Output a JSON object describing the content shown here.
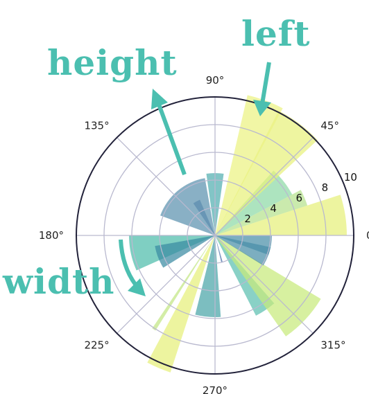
{
  "chart_data": {
    "type": "polar-bar",
    "theta_unit": "degrees",
    "rlim": [
      0,
      10
    ],
    "r_ticks": [
      2,
      4,
      6,
      8,
      10
    ],
    "r_tick_labels": [
      "2",
      "4",
      "6",
      "8",
      "10"
    ],
    "r_label_angle": 22,
    "theta_ticks": [
      0,
      45,
      90,
      135,
      180,
      225,
      270,
      315
    ],
    "theta_tick_labels": [
      "0°",
      "45°",
      "90°",
      "135°",
      "180°",
      "225°",
      "270°",
      "315°"
    ],
    "grid": true,
    "colormap": "viridis",
    "bars": [
      {
        "left": 0,
        "width": 18,
        "height": 9.5,
        "color": "#e6f07a"
      },
      {
        "left": 18,
        "width": 10,
        "height": 7.0,
        "color": "#b6e28e"
      },
      {
        "left": 28,
        "width": 20,
        "height": 6.3,
        "color": "#8ed9a6"
      },
      {
        "left": 43,
        "width": 20,
        "height": 10.1,
        "color": "#e7f17c"
      },
      {
        "left": 62,
        "width": 15,
        "height": 10.4,
        "color": "#ecf382"
      },
      {
        "left": 82,
        "width": 16,
        "height": 4.5,
        "color": "#52aeb0"
      },
      {
        "left": 113,
        "width": 11,
        "height": 2.8,
        "color": "#5b7bae"
      },
      {
        "left": 100,
        "width": 60,
        "height": 4.2,
        "color": "#5c91ae"
      },
      {
        "left": 180,
        "width": 24,
        "height": 6.2,
        "color": "#4dbcab"
      },
      {
        "left": 190,
        "width": 22,
        "height": 4.4,
        "color": "#3a8aa2"
      },
      {
        "left": 236,
        "width": 2,
        "height": 8.1,
        "color": "#c2e683"
      },
      {
        "left": 242,
        "width": 10,
        "height": 10.4,
        "color": "#e6f07a"
      },
      {
        "left": 256,
        "width": 18,
        "height": 5.9,
        "color": "#4aa5a8"
      },
      {
        "left": 283,
        "width": 3,
        "height": 2.0,
        "color": "#4b6fa8"
      },
      {
        "left": 297,
        "width": 14,
        "height": 6.5,
        "color": "#5bbfb0"
      },
      {
        "left": 305,
        "width": 24,
        "height": 8.9,
        "color": "#c8ea7c"
      },
      {
        "left": 328,
        "width": 20,
        "height": 4.1,
        "color": "#4a8fa8"
      },
      {
        "left": 340,
        "width": 20,
        "height": 4.1,
        "color": "#4a8fa8"
      }
    ]
  },
  "annotations": {
    "height_label": "height",
    "left_label": "left",
    "width_label": "width",
    "color": "#4bbfb0"
  }
}
